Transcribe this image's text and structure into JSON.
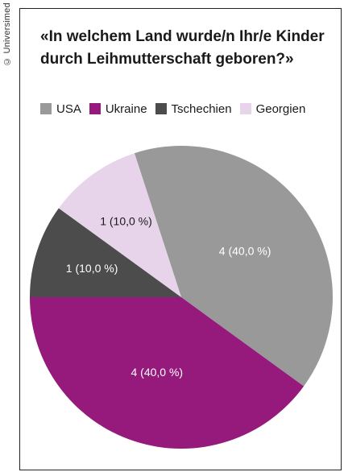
{
  "copyright": "© Universimed",
  "title_lines": [
    "«In welchem Land wurde/n Ihr/e Kinder",
    "durch Leihmutterschaft geboren?»"
  ],
  "chart_data": {
    "type": "pie",
    "title": "«In welchem Land wurde/n Ihr/e Kinder durch Leihmutterschaft geboren?»",
    "categories": [
      "USA",
      "Ukraine",
      "Tschechien",
      "Georgien"
    ],
    "values": [
      4,
      4,
      1,
      1
    ],
    "labels": [
      "4 (40,0 %)",
      "4 (40,0 %)",
      "1 (10,0 %)",
      "1 (10,0 %)"
    ],
    "colors": [
      "#999999",
      "#951a7b",
      "#4c4c4c",
      "#e7d4ea"
    ],
    "label_colors": [
      "#ffffff",
      "#ffffff",
      "#ffffff",
      "#1a1a1a"
    ],
    "legend_position": "top"
  }
}
